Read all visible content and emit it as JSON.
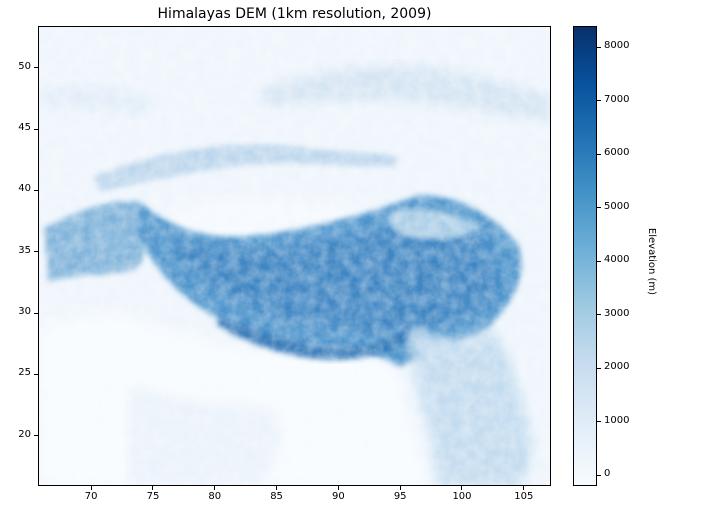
{
  "figure": {
    "title": "Himalayas DEM (1km resolution, 2009)"
  },
  "map": {
    "x_ticks": [
      "70",
      "75",
      "80",
      "85",
      "90",
      "95",
      "100",
      "105"
    ],
    "y_ticks": [
      "50",
      "45",
      "40",
      "35",
      "30",
      "25",
      "20"
    ],
    "colormap": "Blues"
  },
  "colorbar": {
    "label": "Elevation (m)",
    "ticks": [
      "8000",
      "7000",
      "6000",
      "5000",
      "4000",
      "3000",
      "2000",
      "1000",
      "0"
    ],
    "min": -200,
    "max": 8400
  }
}
